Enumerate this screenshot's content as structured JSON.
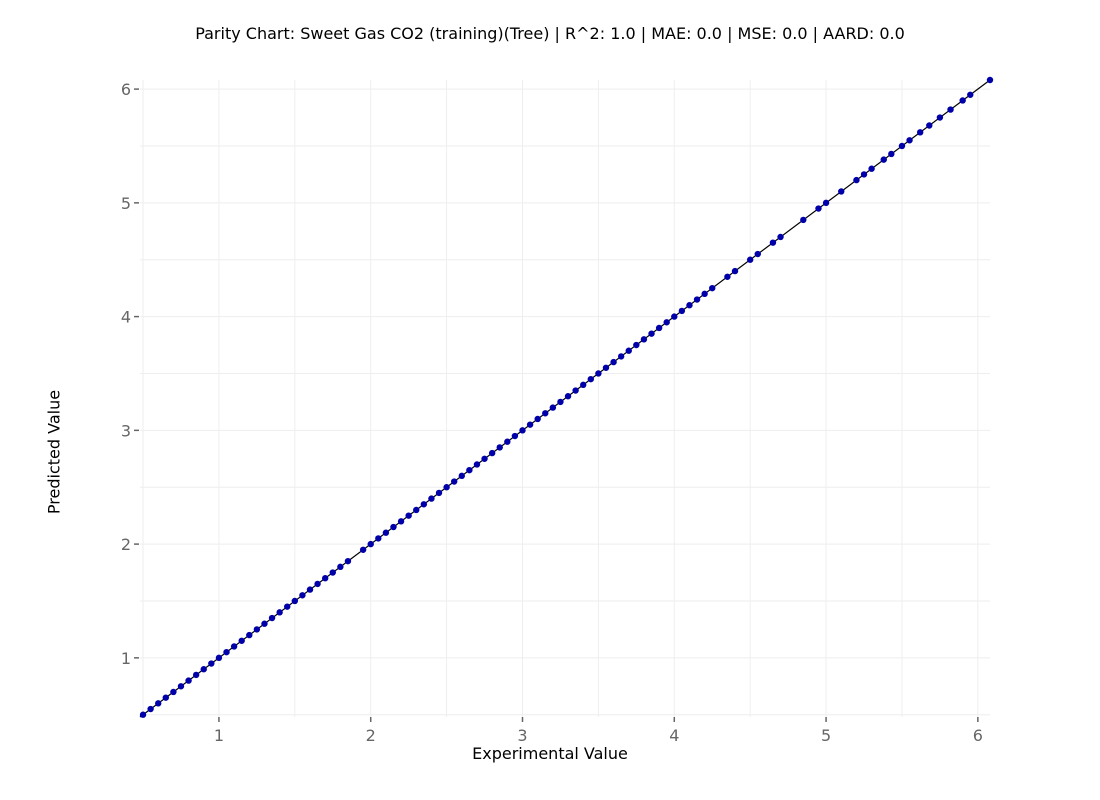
{
  "chart_data": {
    "type": "scatter",
    "title": "Parity Chart: Sweet Gas CO2 (training)(Tree) | R^2: 1.0 | MAE: 0.0 | MSE: 0.0 | AARD: 0.0",
    "xlabel": "Experimental Value",
    "ylabel": "Predicted Value",
    "xlim": [
      0.48,
      6.08
    ],
    "ylim": [
      0.48,
      6.08
    ],
    "x_ticks": [
      "1",
      "2",
      "3",
      "4",
      "5",
      "6"
    ],
    "y_ticks": [
      "1",
      "2",
      "3",
      "4",
      "5",
      "6"
    ],
    "grid": true,
    "legend": "none",
    "colors": {
      "points": "#0000aa",
      "parity_line": "#000000",
      "grid": "#eeeeee",
      "ticks": "#666666"
    },
    "parity_line": {
      "x": [
        0.48,
        6.08
      ],
      "y": [
        0.48,
        6.08
      ]
    },
    "series": [
      {
        "points_x": [
          0.5,
          0.55,
          0.6,
          0.65,
          0.7,
          0.75,
          0.8,
          0.85,
          0.9,
          0.95,
          1.0,
          1.05,
          1.1,
          1.15,
          1.2,
          1.25,
          1.3,
          1.35,
          1.4,
          1.45,
          1.5,
          1.55,
          1.6,
          1.65,
          1.7,
          1.75,
          1.8,
          1.85,
          1.95,
          2.0,
          2.05,
          2.1,
          2.15,
          2.2,
          2.25,
          2.3,
          2.35,
          2.4,
          2.45,
          2.5,
          2.55,
          2.6,
          2.65,
          2.7,
          2.75,
          2.8,
          2.85,
          2.9,
          2.95,
          3.0,
          3.05,
          3.1,
          3.15,
          3.2,
          3.25,
          3.3,
          3.35,
          3.4,
          3.45,
          3.5,
          3.55,
          3.6,
          3.65,
          3.7,
          3.75,
          3.8,
          3.85,
          3.9,
          3.95,
          4.0,
          4.05,
          4.1,
          4.15,
          4.2,
          4.25,
          4.35,
          4.4,
          4.5,
          4.55,
          4.65,
          4.7,
          4.85,
          4.95,
          5.0,
          5.1,
          5.2,
          5.25,
          5.3,
          5.38,
          5.43,
          5.5,
          5.55,
          5.62,
          5.68,
          5.75,
          5.82,
          5.9,
          5.95,
          6.08
        ],
        "points_y": [
          0.5,
          0.55,
          0.6,
          0.65,
          0.7,
          0.75,
          0.8,
          0.85,
          0.9,
          0.95,
          1.0,
          1.05,
          1.1,
          1.15,
          1.2,
          1.25,
          1.3,
          1.35,
          1.4,
          1.45,
          1.5,
          1.55,
          1.6,
          1.65,
          1.7,
          1.75,
          1.8,
          1.85,
          1.95,
          2.0,
          2.05,
          2.1,
          2.15,
          2.2,
          2.25,
          2.3,
          2.35,
          2.4,
          2.45,
          2.5,
          2.55,
          2.6,
          2.65,
          2.7,
          2.75,
          2.8,
          2.85,
          2.9,
          2.95,
          3.0,
          3.05,
          3.1,
          3.15,
          3.2,
          3.25,
          3.3,
          3.35,
          3.4,
          3.45,
          3.5,
          3.55,
          3.6,
          3.65,
          3.7,
          3.75,
          3.8,
          3.85,
          3.9,
          3.95,
          4.0,
          4.05,
          4.1,
          4.15,
          4.2,
          4.25,
          4.35,
          4.4,
          4.5,
          4.55,
          4.65,
          4.7,
          4.85,
          4.95,
          5.0,
          5.1,
          5.2,
          5.25,
          5.3,
          5.38,
          5.43,
          5.5,
          5.55,
          5.62,
          5.68,
          5.75,
          5.82,
          5.9,
          5.95,
          6.08
        ]
      }
    ]
  }
}
